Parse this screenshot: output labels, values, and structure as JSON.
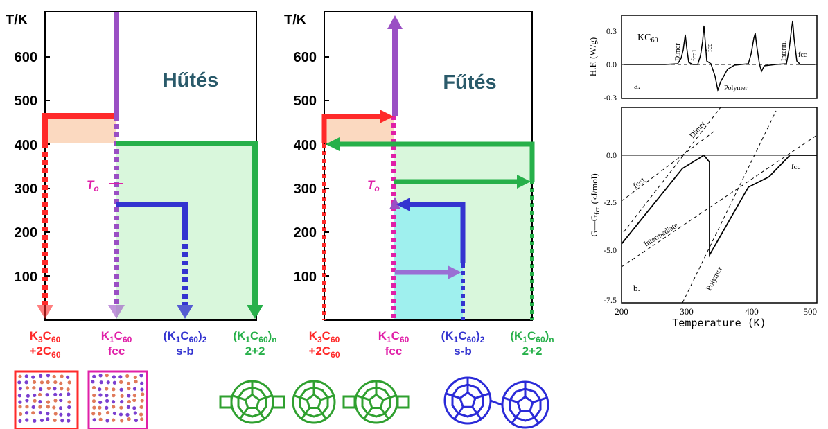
{
  "colors": {
    "red": "#ff2a2a",
    "purple": "#9a4fc4",
    "magenta": "#e020a8",
    "blue": "#3434d0",
    "green": "#27b04a",
    "teal": "#2a5a6a",
    "orange_fill": "#fbd9c0",
    "green_fill": "#d9f7dc",
    "cyan_fill": "#9ff0ee",
    "c60_green": "#2fa02f",
    "c60_blue": "#2a2ad8"
  },
  "left_panel": {
    "axis_label": "T/K",
    "ticks": [
      "600",
      "500",
      "400",
      "300",
      "200",
      "100"
    ],
    "tick_values": [
      600,
      500,
      400,
      300,
      200,
      100
    ],
    "title": "Hűtés",
    "to_label": "T",
    "to_sub": "o"
  },
  "right_panel": {
    "axis_label": "T/K",
    "ticks": [
      "600",
      "500",
      "400",
      "300",
      "200",
      "100"
    ],
    "tick_values": [
      600,
      500,
      400,
      300,
      200,
      100
    ],
    "title": "Fűtés",
    "to_label": "T",
    "to_sub": "o"
  },
  "phases": [
    {
      "line1": "K",
      "sub1": "3",
      "mid1": "C",
      "sub2": "60",
      "line2": "+2C",
      "sub3": "60",
      "color": "#ff2a2a"
    },
    {
      "line1": "K",
      "sub1": "1",
      "mid1": "C",
      "sub2": "60",
      "line2": "fcc",
      "sub3": "",
      "color": "#e020a8"
    },
    {
      "line1": "(K",
      "sub1": "1",
      "mid1": "C",
      "sub2": "60",
      "tail": ")",
      "tailsub": "2",
      "line2": "s-b",
      "color": "#3434d0"
    },
    {
      "line1": "(K",
      "sub1": "1",
      "mid1": "C",
      "sub2": "60",
      "tail": ")",
      "tailsub": "n",
      "line2": "2+2",
      "color": "#27b04a"
    }
  ],
  "dsc": {
    "compound": "KC",
    "compound_sub": "60",
    "ylabel": "H.F.  (W/g)",
    "yticks": [
      "0.3",
      "0.0",
      "-0.3"
    ],
    "panel_label": "a.",
    "peak_labels": [
      "Dimer",
      "fcc1",
      "fcc",
      "Interm.",
      "fcc",
      "Polymer"
    ]
  },
  "gibbs": {
    "ylabel": "G—G",
    "ylabel_sub": "fcc",
    "ylabel_unit": "  (kJ/mol)",
    "yticks": [
      "0.0",
      "-2.5",
      "-5.0",
      "-7.5"
    ],
    "xticks": [
      "200",
      "300",
      "400",
      "500"
    ],
    "xlabel": "Temperature  (K)",
    "panel_label": "b.",
    "curve_labels": [
      "Dimer",
      "fcc1",
      "Intermediate",
      "Polymer",
      "fcc"
    ]
  }
}
